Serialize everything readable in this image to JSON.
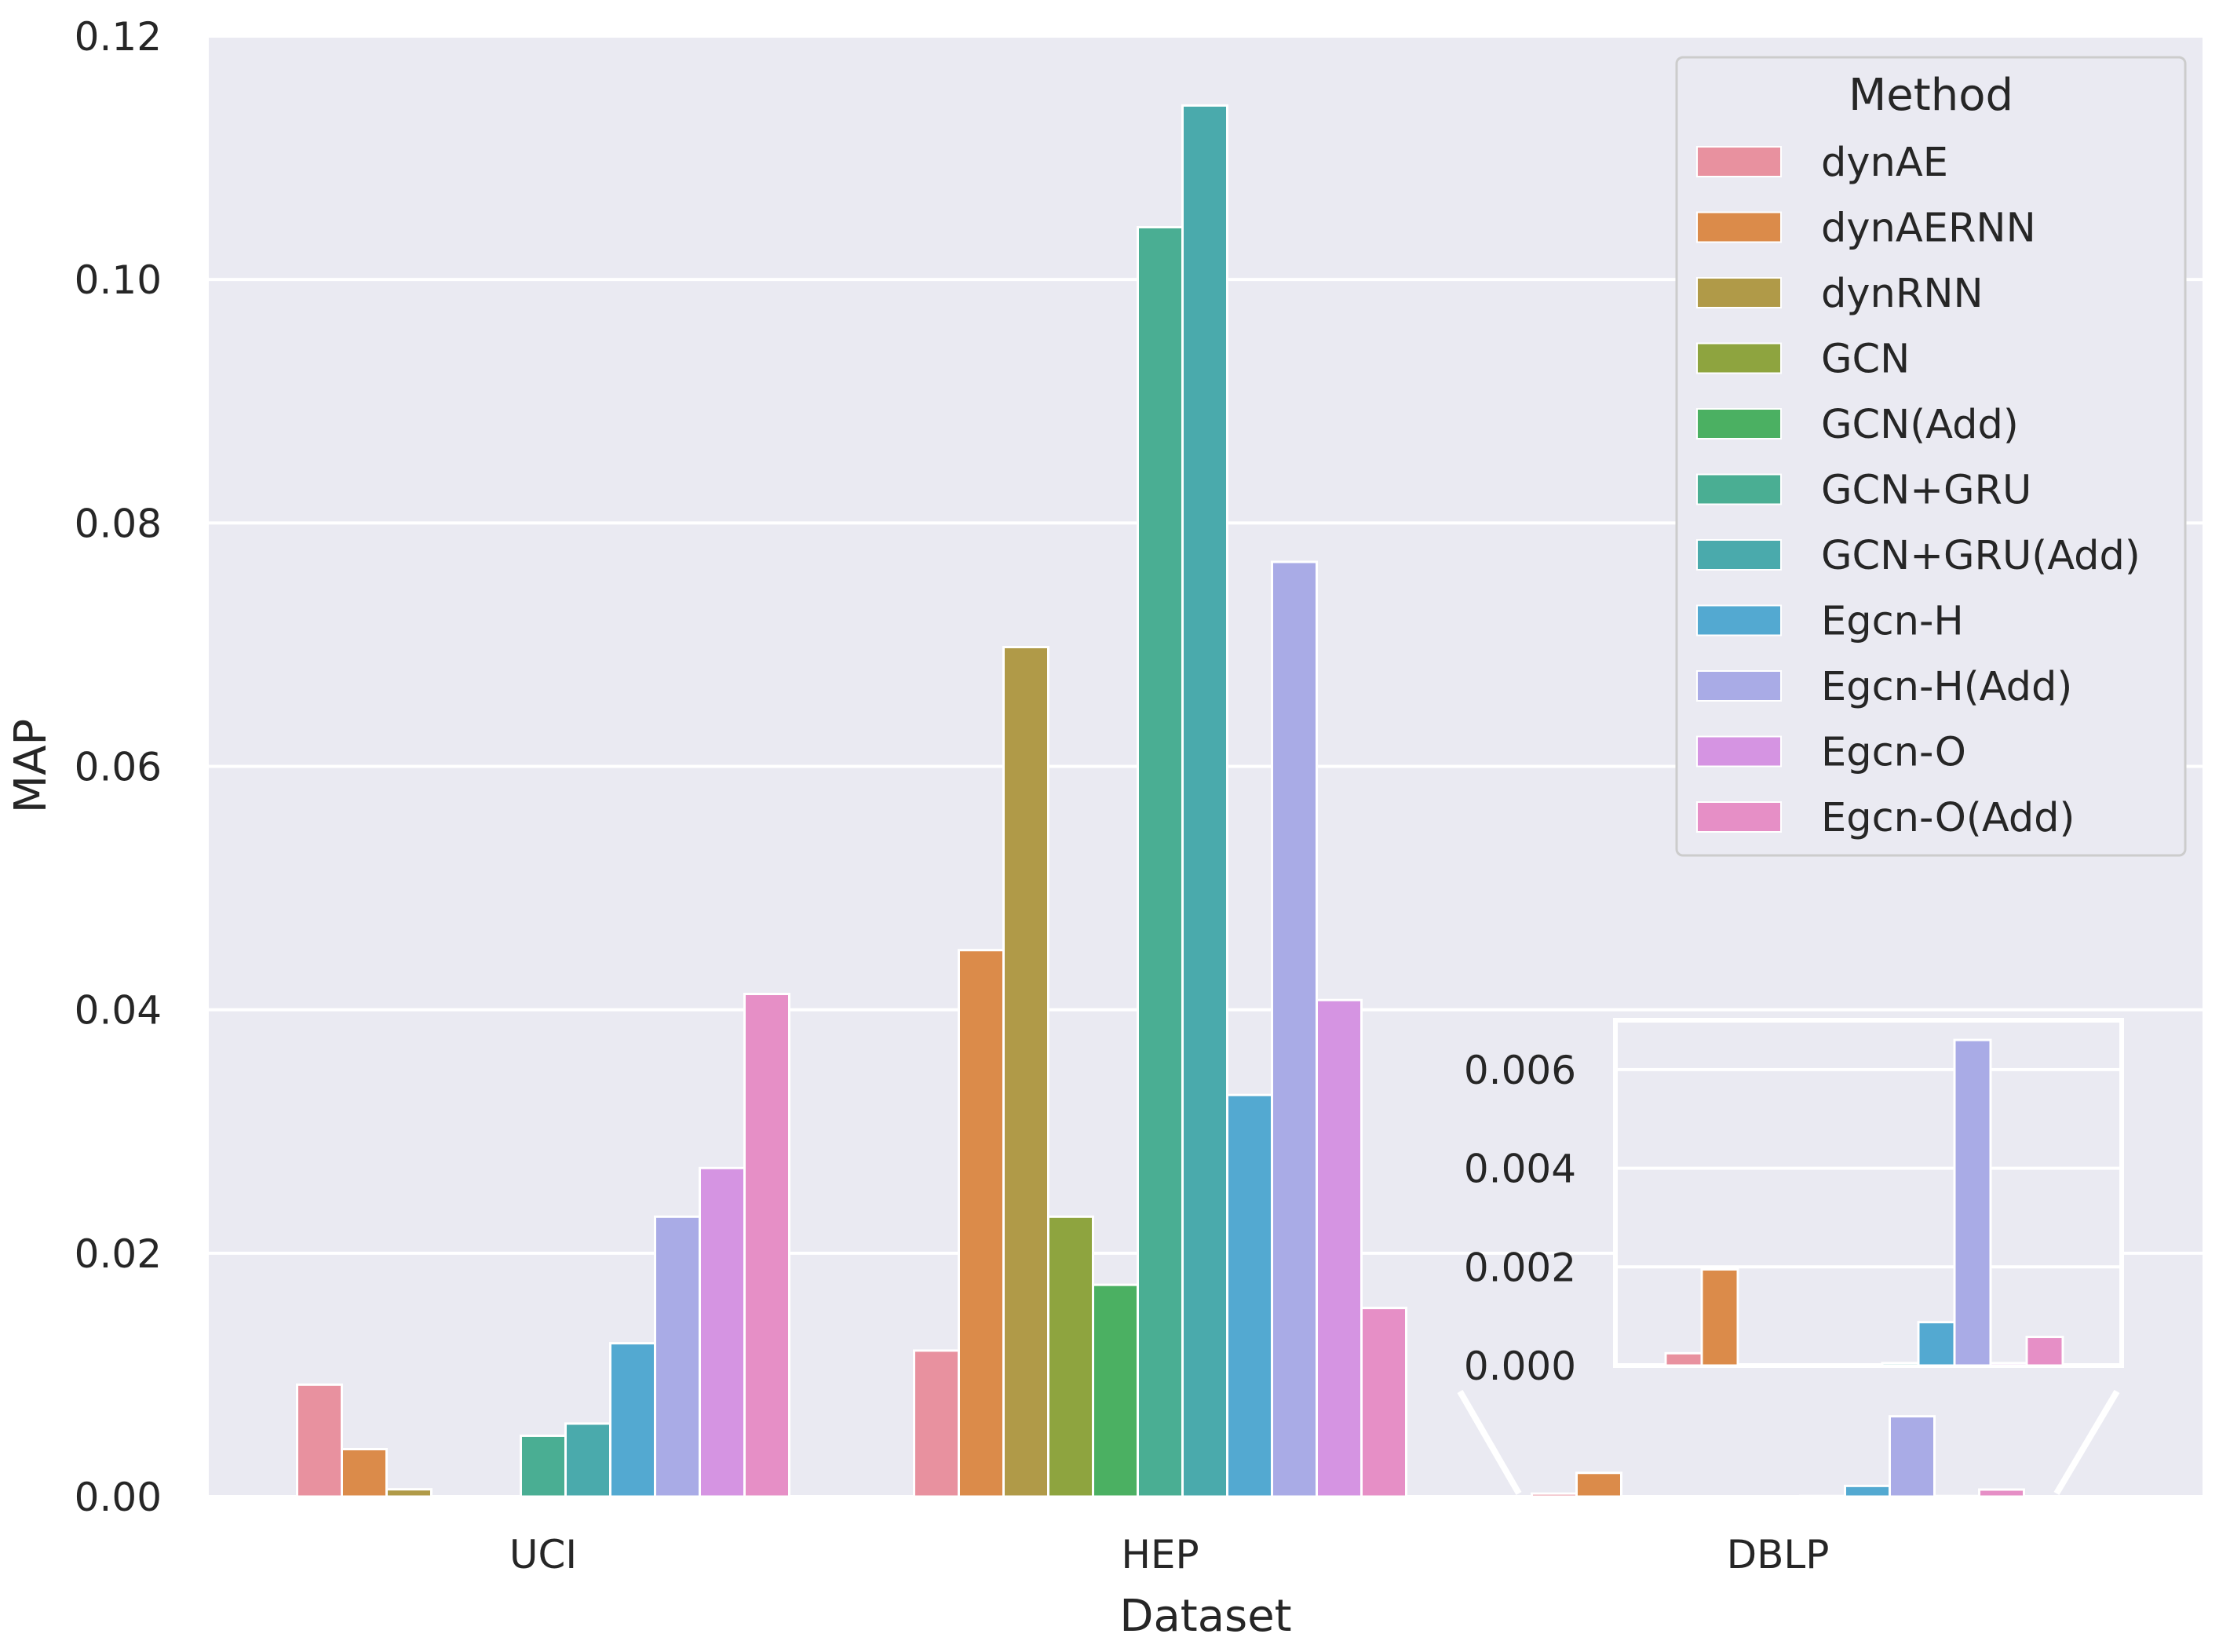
{
  "chart_data": {
    "type": "bar",
    "xlabel": "Dataset",
    "ylabel": "MAP",
    "ylim": [
      0,
      0.12
    ],
    "yticks": [
      "0.00",
      "0.02",
      "0.04",
      "0.06",
      "0.08",
      "0.10",
      "0.12"
    ],
    "categories": [
      "UCI",
      "HEP",
      "DBLP"
    ],
    "legend_title": "Method",
    "legend_position": "top-right",
    "grid": true,
    "series": [
      {
        "name": "dynAE",
        "color": "#e8919f",
        "values": [
          0.0092,
          0.012,
          0.00025
        ]
      },
      {
        "name": "dynAERNN",
        "color": "#db8b4a",
        "values": [
          0.0039,
          0.0449,
          0.00195
        ]
      },
      {
        "name": "dynRNN",
        "color": "#b09a48",
        "values": [
          0.0006,
          0.0698,
          0.0
        ]
      },
      {
        "name": "GCN",
        "color": "#8ea43f",
        "values": [
          0.0,
          0.023,
          0.0
        ]
      },
      {
        "name": "GCN(Add)",
        "color": "#4bb062",
        "values": [
          0.0,
          0.0174,
          0.0
        ]
      },
      {
        "name": "GCN+GRU",
        "color": "#4aae93",
        "values": [
          0.005,
          0.1043,
          0.0
        ]
      },
      {
        "name": "GCN+GRU(Add)",
        "color": "#4aaaac",
        "values": [
          0.006,
          0.1143,
          5e-05
        ]
      },
      {
        "name": "Egcn-H",
        "color": "#53a9d1",
        "values": [
          0.0126,
          0.033,
          0.00088
        ]
      },
      {
        "name": "Egcn-H(Add)",
        "color": "#a9abe6",
        "values": [
          0.023,
          0.0768,
          0.0066
        ]
      },
      {
        "name": "Egcn-O",
        "color": "#d594e2",
        "values": [
          0.027,
          0.0408,
          5e-05
        ]
      },
      {
        "name": "Egcn-O(Add)",
        "color": "#e68fc6",
        "values": [
          0.0413,
          0.0155,
          0.00058
        ]
      }
    ],
    "inset": {
      "category": "DBLP",
      "ylim": [
        0,
        0.007
      ],
      "yticks": [
        "0.000",
        "0.002",
        "0.004",
        "0.006"
      ]
    }
  }
}
